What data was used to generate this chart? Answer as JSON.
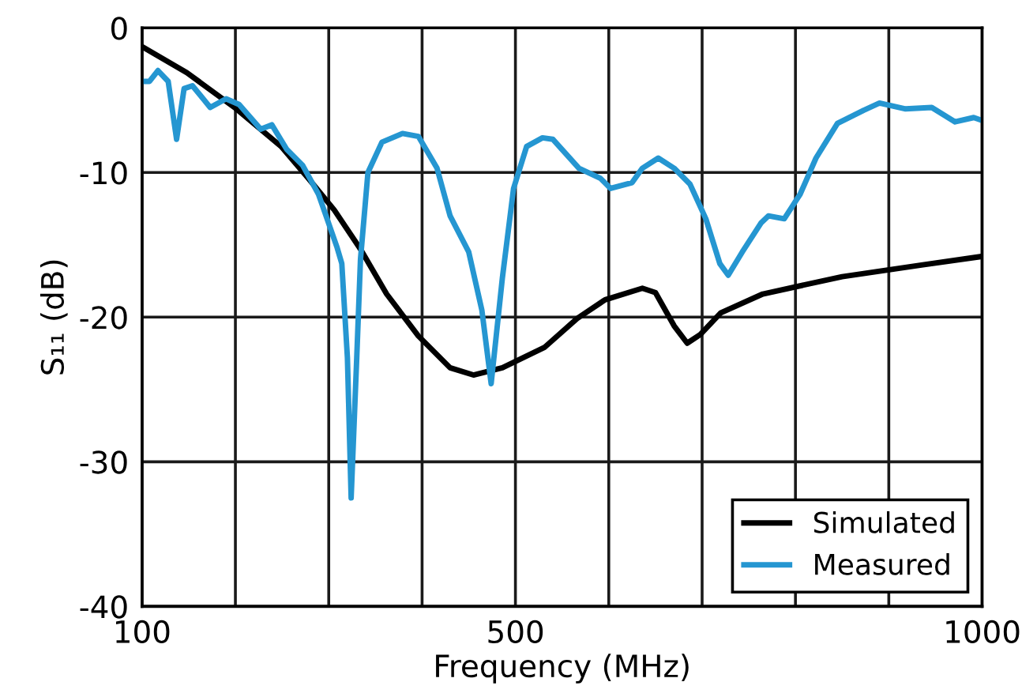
{
  "chart_data": {
    "type": "line",
    "xlabel": "Frequency (MHz)",
    "ylabel": "S₁₁ (dB)",
    "xlim": [
      100,
      1000
    ],
    "ylim": [
      -40,
      0
    ],
    "xticks": [
      100,
      {
        "value": 200,
        "label": null
      },
      {
        "value": 300,
        "label": null
      },
      {
        "value": 400,
        "label": null
      },
      500,
      {
        "value": 600,
        "label": null
      },
      {
        "value": 700,
        "label": null
      },
      {
        "value": 800,
        "label": null
      },
      {
        "value": 900,
        "label": null
      },
      1000
    ],
    "yticks": [
      -40,
      -30,
      -20,
      -10,
      0
    ],
    "grid": true,
    "legend": "bottom right",
    "marker": "none",
    "line_style": "solid",
    "series": [
      {
        "name": "Simulated",
        "color": "#000000",
        "x": [
          100,
          148,
          199,
          249,
          278,
          306,
          334,
          362,
          396,
          430,
          455,
          486,
          531,
          566,
          596,
          636,
          650,
          670,
          684,
          698,
          720,
          765,
          850,
          935,
          1000
        ],
        "values": [
          -1.3,
          -3.1,
          -5.5,
          -8.2,
          -10.4,
          -12.6,
          -15.3,
          -18.4,
          -21.3,
          -23.5,
          -24.0,
          -23.5,
          -22.1,
          -20.1,
          -18.8,
          -18.0,
          -18.3,
          -20.6,
          -21.8,
          -21.2,
          -19.7,
          -18.4,
          -17.2,
          -16.4,
          -15.8
        ]
      },
      {
        "name": "Measured",
        "color": "#2596d1",
        "x": [
          100,
          108,
          117,
          128,
          137,
          145,
          154,
          173,
          190,
          204,
          227,
          239,
          255,
          272,
          289,
          309,
          314,
          320,
          324,
          330,
          334,
          342,
          357,
          379,
          396,
          416,
          430,
          450,
          464,
          474,
          486,
          498,
          512,
          529,
          540,
          568,
          591,
          602,
          625,
          636,
          653,
          670,
          687,
          704,
          719,
          728,
          743,
          763,
          771,
          788,
          805,
          822,
          845,
          873,
          890,
          918,
          946,
          971,
          991,
          1000
        ],
        "values": [
          -3.7,
          -3.7,
          -2.95,
          -3.7,
          -7.7,
          -4.2,
          -4.0,
          -5.5,
          -4.9,
          -5.3,
          -7.0,
          -6.7,
          -8.4,
          -9.5,
          -11.5,
          -15.2,
          -16.3,
          -22.8,
          -32.5,
          -22.8,
          -16.0,
          -10.0,
          -7.9,
          -7.3,
          -7.5,
          -9.7,
          -13.0,
          -15.5,
          -19.5,
          -24.6,
          -17.3,
          -11.1,
          -8.2,
          -7.6,
          -7.7,
          -9.7,
          -10.4,
          -11.1,
          -10.7,
          -9.7,
          -9.0,
          -9.7,
          -10.8,
          -13.2,
          -16.3,
          -17.1,
          -15.5,
          -13.5,
          -13.0,
          -13.2,
          -11.5,
          -9.0,
          -6.6,
          -5.7,
          -5.2,
          -5.6,
          -5.5,
          -6.5,
          -6.2,
          -6.4
        ]
      }
    ]
  }
}
